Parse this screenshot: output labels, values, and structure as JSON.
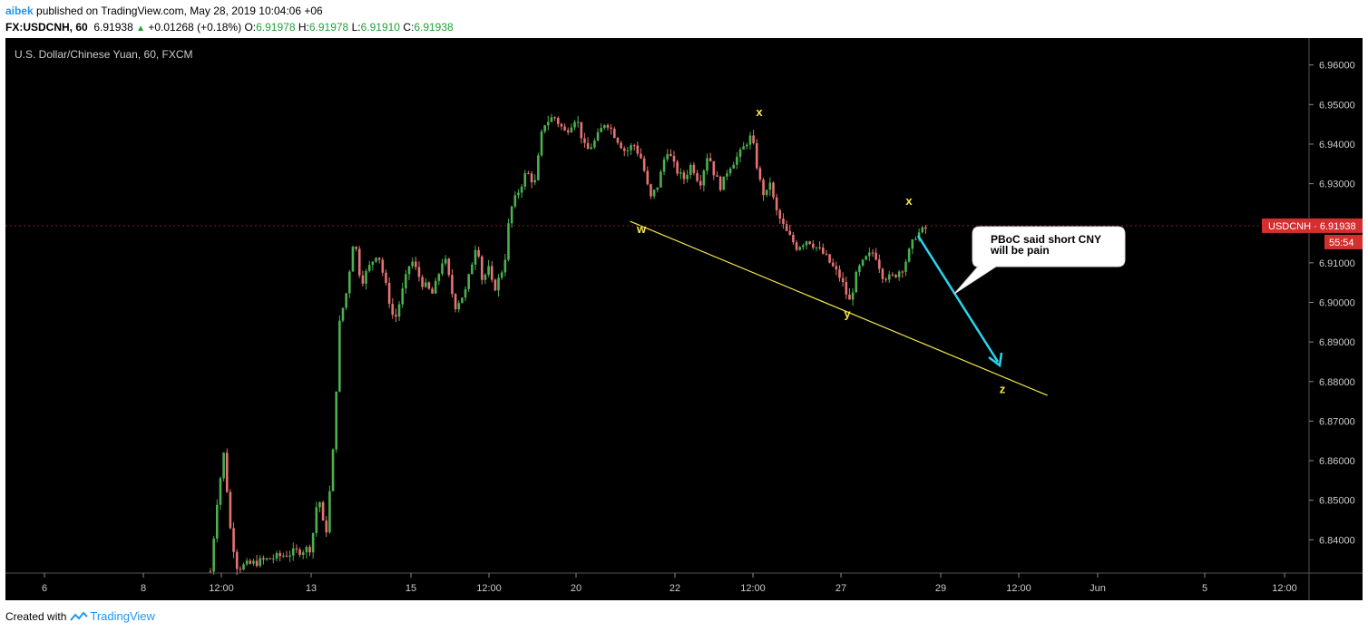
{
  "header": {
    "author": "aibek",
    "published": "published on TradingView.com, May 28, 2019 10:04:06 +06",
    "symbol": "FX:USDCNH, 60",
    "last": "6.91938",
    "change": "+0.01268 (+0.18%)",
    "o_label": "O:",
    "o_value": "6.91978",
    "h_label": "H:",
    "h_value": "6.91978",
    "l_label": "L:",
    "l_value": "6.91910",
    "c_label": "C:",
    "c_value": "6.91938"
  },
  "footer": {
    "created_with": "Created with",
    "brand": "TradingView"
  },
  "colors": {
    "background": "#000000",
    "up": "#4caf50",
    "down": "#e57373",
    "trendline": "#f5e94b",
    "arrow": "#29d6f0",
    "price_badge": "#d32f2f"
  },
  "chart_data": {
    "type": "candlestick",
    "title": "U.S. Dollar/Chinese Yuan, 60, FXCM",
    "ylim": [
      6.8316,
      6.9668
    ],
    "y_ticks": [
      6.96,
      6.95,
      6.94,
      6.93,
      6.92,
      6.91,
      6.9,
      6.89,
      6.88,
      6.87,
      6.86,
      6.85,
      6.84
    ],
    "x_ticks": [
      "6",
      "8",
      "12:00",
      "13",
      "15",
      "12:00",
      "20",
      "22",
      "12:00",
      "27",
      "29",
      "12:00",
      "Jun",
      "5",
      "12:00"
    ],
    "last_price_label": "USDCNH · 6.91938",
    "last_price": 6.91938,
    "countdown": "55:54",
    "price_path": [
      [
        "May 10",
        6.832
      ],
      [
        "May 10",
        6.85
      ],
      [
        "May 10",
        6.862
      ],
      [
        "May 10",
        6.842
      ],
      [
        "May 10",
        6.833
      ],
      [
        "May 13",
        6.838
      ],
      [
        "May 13",
        6.852
      ],
      [
        "May 13",
        6.84
      ],
      [
        "May 13",
        6.86
      ],
      [
        "May 13",
        6.895
      ],
      [
        "May 13",
        6.903
      ],
      [
        "May 13",
        6.917
      ],
      [
        "May 14",
        6.905
      ],
      [
        "May 14",
        6.913
      ],
      [
        "May 14",
        6.895
      ],
      [
        "May 15",
        6.911
      ],
      [
        "May 15",
        6.905
      ],
      [
        "May 15",
        6.902
      ],
      [
        "May 16",
        6.912
      ],
      [
        "May 16",
        6.899
      ],
      [
        "May 16",
        6.903
      ],
      [
        "May 17",
        6.916
      ],
      [
        "May 17",
        6.905
      ],
      [
        "May 17",
        6.909
      ],
      [
        "May 17",
        6.903
      ],
      [
        "May 17",
        6.906
      ],
      [
        "May 17",
        6.91
      ],
      [
        "May 18",
        6.923
      ],
      [
        "May 18",
        6.928
      ],
      [
        "May 18",
        6.933
      ],
      [
        "May 18",
        6.93
      ],
      [
        "May 19",
        6.945
      ],
      [
        "May 19",
        6.947
      ],
      [
        "May 19",
        6.943
      ],
      [
        "May 20",
        6.947
      ],
      [
        "May 20",
        6.938
      ],
      [
        "May 20",
        6.941
      ],
      [
        "May 20",
        6.946
      ],
      [
        "May 20",
        6.942
      ],
      [
        "May 21",
        6.938
      ],
      [
        "May 21",
        6.94
      ],
      [
        "May 21",
        6.936
      ],
      [
        "May 21",
        6.926
      ],
      [
        "May 21",
        6.93
      ],
      [
        "May 21",
        6.939
      ],
      [
        "May 22",
        6.934
      ],
      [
        "May 22",
        6.931
      ],
      [
        "May 22",
        6.935
      ],
      [
        "May 22",
        6.93
      ],
      [
        "May 23",
        6.938
      ],
      [
        "May 23",
        6.932
      ],
      [
        "May 23",
        6.929
      ],
      [
        "May 23",
        6.934
      ],
      [
        "May 23",
        6.936
      ],
      [
        "May 24",
        6.938
      ],
      [
        "May 24",
        6.94
      ],
      [
        "May 24",
        6.942
      ],
      [
        "May 24",
        6.939
      ],
      [
        "May 24",
        6.933
      ],
      [
        "May 24",
        6.928
      ],
      [
        "May 24",
        6.927
      ],
      [
        "May 24",
        6.931
      ],
      [
        "May 25",
        6.924
      ],
      [
        "May 25",
        6.918
      ],
      [
        "May 25",
        6.914
      ],
      [
        "May 26",
        6.916
      ],
      [
        "May 26",
        6.912
      ],
      [
        "May 27",
        6.906
      ],
      [
        "May 27",
        6.9
      ],
      [
        "May 27",
        6.908
      ],
      [
        "May 27",
        6.911
      ],
      [
        "May 27",
        6.913
      ],
      [
        "May 27",
        6.907
      ],
      [
        "May 28",
        6.906
      ],
      [
        "May 28",
        6.909
      ],
      [
        "May 28",
        6.917
      ],
      [
        "May 28",
        6.919
      ]
    ],
    "trendline": [
      [
        "May 21",
        6.9205
      ],
      [
        "May 30",
        6.8765
      ]
    ],
    "wave_labels": [
      {
        "text": "w",
        "x": "May 21",
        "price": 6.9185
      },
      {
        "text": "x",
        "x": "May 24",
        "price": 6.948
      },
      {
        "text": "y",
        "x": "May 27",
        "price": 6.897
      },
      {
        "text": "x",
        "x": "May 28",
        "price": 6.9255
      },
      {
        "text": "z",
        "x": "May 30",
        "price": 6.878
      }
    ],
    "callout": {
      "line1": "PBoC said short CNY",
      "line2": "will be pain"
    }
  }
}
